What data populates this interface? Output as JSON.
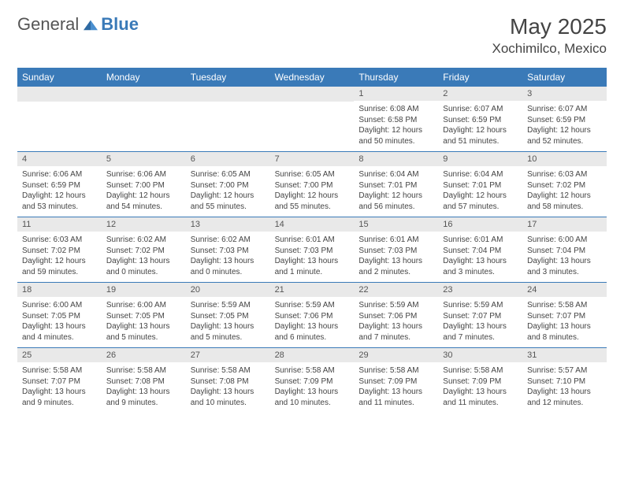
{
  "brand": {
    "part1": "General",
    "part2": "Blue"
  },
  "title": "May 2025",
  "location": "Xochimilco, Mexico",
  "colors": {
    "header_bg": "#3a7ab8",
    "header_text": "#ffffff",
    "daynum_bg": "#e9e9e9",
    "body_text": "#444444",
    "divider": "#3a7ab8",
    "page_bg": "#ffffff"
  },
  "weekdays": [
    "Sunday",
    "Monday",
    "Tuesday",
    "Wednesday",
    "Thursday",
    "Friday",
    "Saturday"
  ],
  "weeks": [
    [
      null,
      null,
      null,
      null,
      {
        "n": "1",
        "sr": "6:08 AM",
        "ss": "6:58 PM",
        "dl": "12 hours and 50 minutes."
      },
      {
        "n": "2",
        "sr": "6:07 AM",
        "ss": "6:59 PM",
        "dl": "12 hours and 51 minutes."
      },
      {
        "n": "3",
        "sr": "6:07 AM",
        "ss": "6:59 PM",
        "dl": "12 hours and 52 minutes."
      }
    ],
    [
      {
        "n": "4",
        "sr": "6:06 AM",
        "ss": "6:59 PM",
        "dl": "12 hours and 53 minutes."
      },
      {
        "n": "5",
        "sr": "6:06 AM",
        "ss": "7:00 PM",
        "dl": "12 hours and 54 minutes."
      },
      {
        "n": "6",
        "sr": "6:05 AM",
        "ss": "7:00 PM",
        "dl": "12 hours and 55 minutes."
      },
      {
        "n": "7",
        "sr": "6:05 AM",
        "ss": "7:00 PM",
        "dl": "12 hours and 55 minutes."
      },
      {
        "n": "8",
        "sr": "6:04 AM",
        "ss": "7:01 PM",
        "dl": "12 hours and 56 minutes."
      },
      {
        "n": "9",
        "sr": "6:04 AM",
        "ss": "7:01 PM",
        "dl": "12 hours and 57 minutes."
      },
      {
        "n": "10",
        "sr": "6:03 AM",
        "ss": "7:02 PM",
        "dl": "12 hours and 58 minutes."
      }
    ],
    [
      {
        "n": "11",
        "sr": "6:03 AM",
        "ss": "7:02 PM",
        "dl": "12 hours and 59 minutes."
      },
      {
        "n": "12",
        "sr": "6:02 AM",
        "ss": "7:02 PM",
        "dl": "13 hours and 0 minutes."
      },
      {
        "n": "13",
        "sr": "6:02 AM",
        "ss": "7:03 PM",
        "dl": "13 hours and 0 minutes."
      },
      {
        "n": "14",
        "sr": "6:01 AM",
        "ss": "7:03 PM",
        "dl": "13 hours and 1 minute."
      },
      {
        "n": "15",
        "sr": "6:01 AM",
        "ss": "7:03 PM",
        "dl": "13 hours and 2 minutes."
      },
      {
        "n": "16",
        "sr": "6:01 AM",
        "ss": "7:04 PM",
        "dl": "13 hours and 3 minutes."
      },
      {
        "n": "17",
        "sr": "6:00 AM",
        "ss": "7:04 PM",
        "dl": "13 hours and 3 minutes."
      }
    ],
    [
      {
        "n": "18",
        "sr": "6:00 AM",
        "ss": "7:05 PM",
        "dl": "13 hours and 4 minutes."
      },
      {
        "n": "19",
        "sr": "6:00 AM",
        "ss": "7:05 PM",
        "dl": "13 hours and 5 minutes."
      },
      {
        "n": "20",
        "sr": "5:59 AM",
        "ss": "7:05 PM",
        "dl": "13 hours and 5 minutes."
      },
      {
        "n": "21",
        "sr": "5:59 AM",
        "ss": "7:06 PM",
        "dl": "13 hours and 6 minutes."
      },
      {
        "n": "22",
        "sr": "5:59 AM",
        "ss": "7:06 PM",
        "dl": "13 hours and 7 minutes."
      },
      {
        "n": "23",
        "sr": "5:59 AM",
        "ss": "7:07 PM",
        "dl": "13 hours and 7 minutes."
      },
      {
        "n": "24",
        "sr": "5:58 AM",
        "ss": "7:07 PM",
        "dl": "13 hours and 8 minutes."
      }
    ],
    [
      {
        "n": "25",
        "sr": "5:58 AM",
        "ss": "7:07 PM",
        "dl": "13 hours and 9 minutes."
      },
      {
        "n": "26",
        "sr": "5:58 AM",
        "ss": "7:08 PM",
        "dl": "13 hours and 9 minutes."
      },
      {
        "n": "27",
        "sr": "5:58 AM",
        "ss": "7:08 PM",
        "dl": "13 hours and 10 minutes."
      },
      {
        "n": "28",
        "sr": "5:58 AM",
        "ss": "7:09 PM",
        "dl": "13 hours and 10 minutes."
      },
      {
        "n": "29",
        "sr": "5:58 AM",
        "ss": "7:09 PM",
        "dl": "13 hours and 11 minutes."
      },
      {
        "n": "30",
        "sr": "5:58 AM",
        "ss": "7:09 PM",
        "dl": "13 hours and 11 minutes."
      },
      {
        "n": "31",
        "sr": "5:57 AM",
        "ss": "7:10 PM",
        "dl": "13 hours and 12 minutes."
      }
    ]
  ],
  "labels": {
    "sunrise": "Sunrise:",
    "sunset": "Sunset:",
    "daylight": "Daylight:"
  }
}
